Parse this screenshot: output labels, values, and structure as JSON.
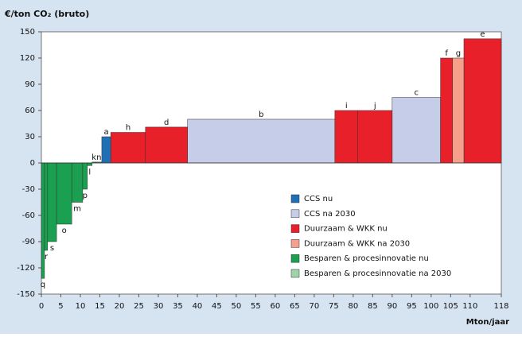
{
  "chart_data": {
    "type": "cost-curve",
    "title": "€/ton CO₂ (bruto)",
    "xlabel": "Mton/jaar",
    "xlim": [
      0,
      118
    ],
    "xticks": [
      0,
      5,
      10,
      15,
      20,
      25,
      30,
      35,
      40,
      45,
      50,
      55,
      60,
      65,
      70,
      75,
      80,
      85,
      90,
      95,
      100,
      105,
      110,
      118
    ],
    "ylim": [
      -150,
      150
    ],
    "yticks": [
      -150,
      -120,
      -90,
      -60,
      -30,
      0,
      30,
      60,
      90,
      120,
      150
    ],
    "series": [
      {
        "name": "CCS nu",
        "color": "#1f6fb5",
        "labels": [
          "a"
        ],
        "x0": [
          15.5
        ],
        "x1": [
          17.8
        ],
        "values": [
          30
        ]
      },
      {
        "name": "CCS na 2030",
        "color": "#c5cde8",
        "labels": [
          "b",
          "c"
        ],
        "x0": [
          37.5,
          90
        ],
        "x1": [
          75.3,
          102.4
        ],
        "values": [
          50,
          75
        ]
      },
      {
        "name": "Duurzaam & WKK nu",
        "color": "#e8202a",
        "labels": [
          "h",
          "d",
          "i",
          "j",
          "f",
          "e"
        ],
        "x0": [
          17.8,
          26.7,
          75.3,
          81.2,
          102.4,
          108.4
        ],
        "x1": [
          26.7,
          37.5,
          81.2,
          90,
          105.5,
          118
        ],
        "values": [
          35,
          41,
          60,
          60,
          120,
          142
        ]
      },
      {
        "name": "Duurzaam & WKK na 2030",
        "color": "#f4a08a",
        "labels": [
          "g"
        ],
        "x0": [
          105.5
        ],
        "x1": [
          108.4
        ],
        "values": [
          120
        ]
      },
      {
        "name": "Besparen & procesinnovatie nu",
        "color": "#1aa050",
        "labels": [
          "q",
          "r",
          "s",
          "o",
          "m",
          "p",
          "l",
          "k",
          "n"
        ],
        "x0": [
          0,
          0.8,
          1.6,
          3.9,
          7.8,
          10.6,
          11.8,
          13,
          14
        ],
        "x1": [
          0.8,
          1.6,
          3.9,
          7.8,
          10.6,
          11.8,
          13,
          14,
          15.5
        ],
        "values": [
          -132,
          -100,
          -90,
          -70,
          -45,
          -30,
          -3,
          1,
          1
        ]
      },
      {
        "name": "Besparen & procesinnovatie na 2030",
        "color": "#9fd4a8",
        "labels": [],
        "x0": [],
        "x1": [],
        "values": []
      }
    ]
  }
}
